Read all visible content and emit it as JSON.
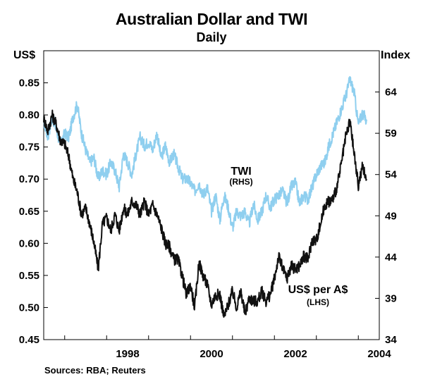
{
  "chart_data": {
    "type": "line",
    "title": "Australian Dollar and TWI",
    "subtitle": "Daily",
    "left_axis": {
      "unit": "US$",
      "range": [
        0.45,
        0.9
      ],
      "ticks": [
        0.45,
        0.5,
        0.55,
        0.6,
        0.65,
        0.7,
        0.75,
        0.8,
        0.85
      ],
      "tick_labels": [
        "0.45",
        "0.50",
        "0.55",
        "0.60",
        "0.65",
        "0.70",
        "0.75",
        "0.80",
        "0.85"
      ]
    },
    "right_axis": {
      "unit": "Index",
      "range": [
        34,
        69
      ],
      "ticks": [
        34,
        39,
        44,
        49,
        54,
        59,
        64
      ],
      "tick_labels": [
        "34",
        "39",
        "44",
        "49",
        "54",
        "59",
        "64"
      ]
    },
    "x_axis": {
      "range": [
        1996.5,
        2004.5
      ],
      "tick_years": [
        1997,
        1998,
        1999,
        2000,
        2001,
        2002,
        2003,
        2004
      ],
      "labeled_years": [
        1998,
        2000,
        2002,
        2004
      ],
      "tick_labels": [
        "1998",
        "2000",
        "2002",
        "2004"
      ]
    },
    "series": [
      {
        "name": "TWI",
        "label": "TWI",
        "axis_label": "(RHS)",
        "axis": "right",
        "color": "#8fcfef",
        "x": [
          1996.5,
          1996.6,
          1996.7,
          1996.8,
          1996.9,
          1997.0,
          1997.1,
          1997.2,
          1997.3,
          1997.4,
          1997.5,
          1997.6,
          1997.7,
          1997.8,
          1997.9,
          1998.0,
          1998.1,
          1998.2,
          1998.3,
          1998.4,
          1998.5,
          1998.6,
          1998.7,
          1998.8,
          1998.9,
          1999.0,
          1999.1,
          1999.2,
          1999.3,
          1999.4,
          1999.5,
          1999.6,
          1999.7,
          1999.8,
          1999.9,
          2000.0,
          2000.1,
          2000.2,
          2000.3,
          2000.4,
          2000.5,
          2000.6,
          2000.7,
          2000.8,
          2000.9,
          2001.0,
          2001.1,
          2001.2,
          2001.3,
          2001.4,
          2001.5,
          2001.6,
          2001.7,
          2001.8,
          2001.9,
          2002.0,
          2002.1,
          2002.2,
          2002.3,
          2002.4,
          2002.5,
          2002.6,
          2002.7,
          2002.8,
          2002.9,
          2003.0,
          2003.1,
          2003.2,
          2003.3,
          2003.4,
          2003.5,
          2003.6,
          2003.7,
          2003.8,
          2003.9,
          2004.0,
          2004.1,
          2004.2
        ],
        "values": [
          60.5,
          58.5,
          61.0,
          59.5,
          57.5,
          59.0,
          58.5,
          61.0,
          62.5,
          59.0,
          57.0,
          55.5,
          56.0,
          53.5,
          54.5,
          54.0,
          55.5,
          54.5,
          52.5,
          56.5,
          55.5,
          54.0,
          56.5,
          58.5,
          57.5,
          58.0,
          57.0,
          59.0,
          56.0,
          57.5,
          55.5,
          56.5,
          55.0,
          53.5,
          53.5,
          53.0,
          52.0,
          53.0,
          51.5,
          52.5,
          49.5,
          51.5,
          48.5,
          51.5,
          50.0,
          47.5,
          49.5,
          49.0,
          49.5,
          48.0,
          50.5,
          48.5,
          49.5,
          51.5,
          50.0,
          51.0,
          51.5,
          52.0,
          50.5,
          52.5,
          53.0,
          50.5,
          51.5,
          51.0,
          52.5,
          54.0,
          55.0,
          55.5,
          57.5,
          59.0,
          60.5,
          62.0,
          63.5,
          65.5,
          64.0,
          60.0,
          61.5,
          60.5
        ]
      },
      {
        "name": "US$ per A$",
        "label": "US$ per A$",
        "axis_label": "(LHS)",
        "axis": "left",
        "color": "#111111",
        "x": [
          1996.5,
          1996.6,
          1996.7,
          1996.8,
          1996.9,
          1997.0,
          1997.1,
          1997.2,
          1997.3,
          1997.4,
          1997.5,
          1997.6,
          1997.7,
          1997.8,
          1997.9,
          1998.0,
          1998.1,
          1998.2,
          1998.3,
          1998.4,
          1998.5,
          1998.6,
          1998.7,
          1998.8,
          1998.9,
          1999.0,
          1999.1,
          1999.2,
          1999.3,
          1999.4,
          1999.5,
          1999.6,
          1999.7,
          1999.8,
          1999.9,
          2000.0,
          2000.1,
          2000.2,
          2000.3,
          2000.4,
          2000.5,
          2000.6,
          2000.7,
          2000.8,
          2000.9,
          2001.0,
          2001.1,
          2001.2,
          2001.3,
          2001.4,
          2001.5,
          2001.6,
          2001.7,
          2001.8,
          2001.9,
          2002.0,
          2002.1,
          2002.2,
          2002.3,
          2002.4,
          2002.5,
          2002.6,
          2002.7,
          2002.8,
          2002.9,
          2003.0,
          2003.1,
          2003.2,
          2003.3,
          2003.4,
          2003.5,
          2003.6,
          2003.7,
          2003.8,
          2003.9,
          2004.0,
          2004.1,
          2004.2
        ],
        "values": [
          0.795,
          0.775,
          0.8,
          0.785,
          0.76,
          0.755,
          0.735,
          0.7,
          0.68,
          0.645,
          0.655,
          0.63,
          0.6,
          0.56,
          0.63,
          0.64,
          0.62,
          0.645,
          0.62,
          0.655,
          0.645,
          0.665,
          0.66,
          0.645,
          0.665,
          0.645,
          0.66,
          0.645,
          0.625,
          0.6,
          0.595,
          0.575,
          0.575,
          0.55,
          0.52,
          0.535,
          0.5,
          0.57,
          0.55,
          0.535,
          0.505,
          0.52,
          0.52,
          0.485,
          0.505,
          0.525,
          0.5,
          0.525,
          0.49,
          0.515,
          0.51,
          0.51,
          0.525,
          0.51,
          0.52,
          0.545,
          0.58,
          0.56,
          0.545,
          0.565,
          0.56,
          0.565,
          0.58,
          0.575,
          0.605,
          0.605,
          0.63,
          0.66,
          0.665,
          0.67,
          0.69,
          0.725,
          0.765,
          0.79,
          0.74,
          0.69,
          0.72,
          0.7
        ]
      }
    ],
    "annotations": [
      {
        "text": "TWI",
        "sub": "(RHS)"
      },
      {
        "text": "US$ per A$",
        "sub": "(LHS)"
      }
    ],
    "source": "Sources:  RBA; Reuters"
  }
}
